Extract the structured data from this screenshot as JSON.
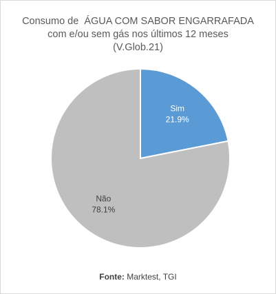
{
  "chart_data": {
    "type": "pie",
    "title_lines": [
      "Consumo de  ÁGUA COM SABOR ENGARRAFADA",
      "com e/ou sem gás nos últimos 12 meses",
      "(V.Glob.21)"
    ],
    "slices": [
      {
        "label": "Sim",
        "value": 21.9,
        "value_label": "21.9%",
        "color": "#5b9bd5"
      },
      {
        "label": "Não",
        "value": 78.1,
        "value_label": "78.1%",
        "color": "#bfbfbf"
      }
    ]
  },
  "source": {
    "label": "Fonte:",
    "text": " Marktest, TGI"
  }
}
